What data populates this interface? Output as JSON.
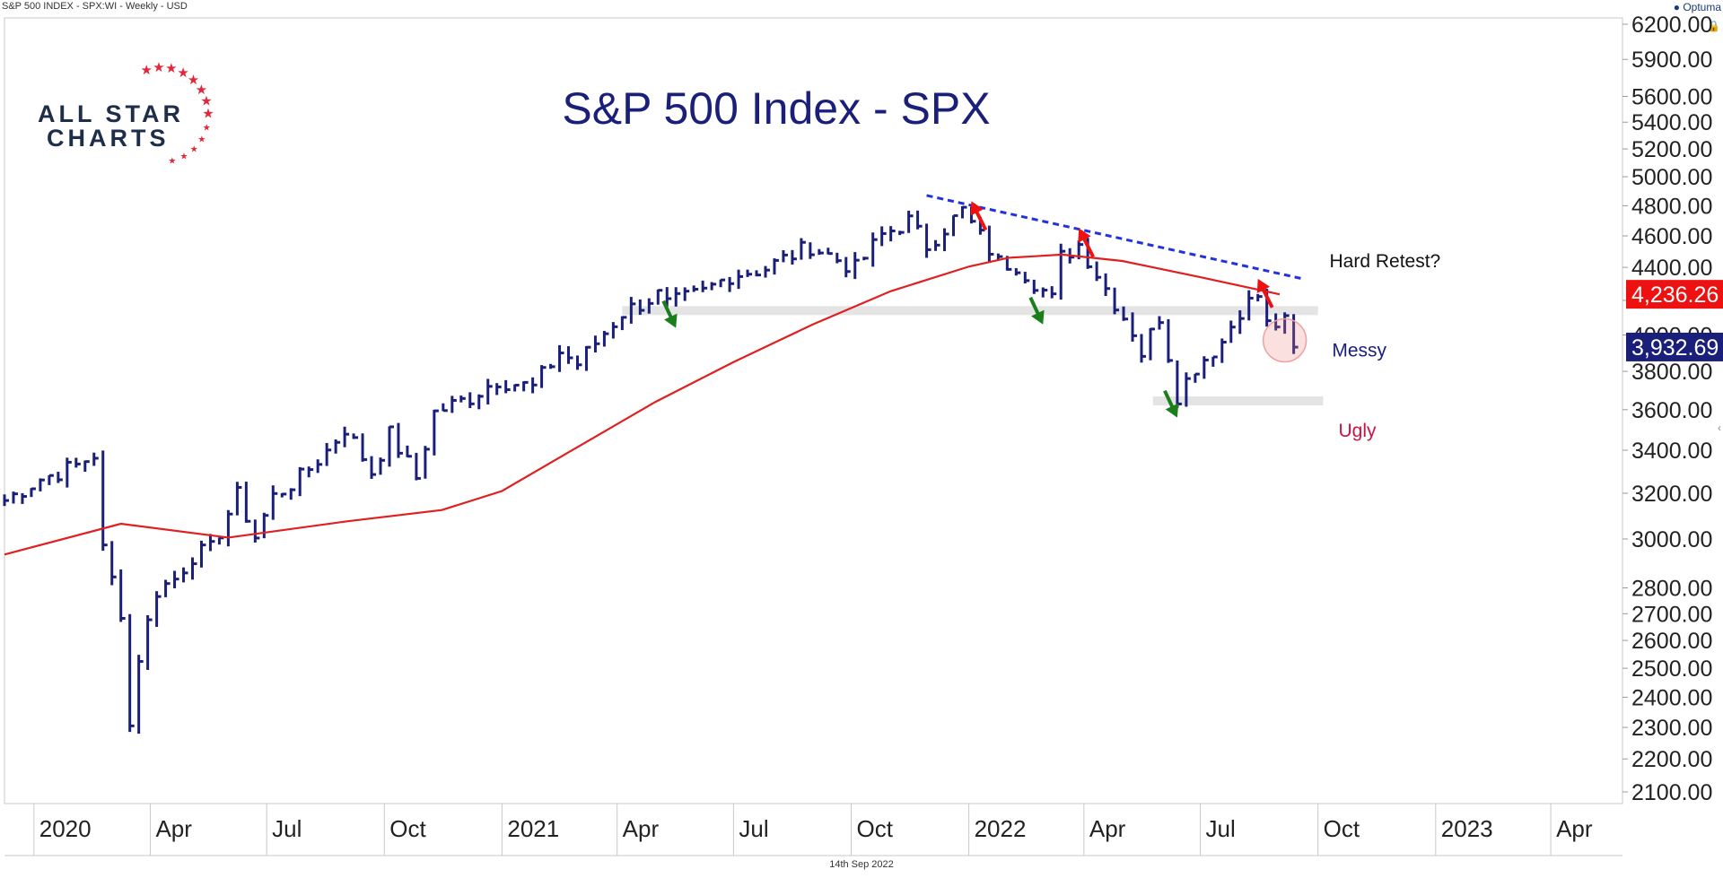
{
  "header": {
    "symbol_line": "S&P 500 INDEX - SPX:WI - Weekly - USD",
    "brand": "Optuma"
  },
  "footer": {
    "date": "14th Sep 2022"
  },
  "logo": {
    "line1": "ALL STAR",
    "line2": "CHARTS"
  },
  "colors": {
    "price": "#1a1f7a",
    "ma": "#e02020",
    "trendline": "#2233dd",
    "red_arrow": "#ee1111",
    "green_arrow": "#1a7f1a",
    "ma_label_bg": "#ee1111",
    "price_label_bg": "#1a1f7a",
    "support_band": "#e4e4e4"
  },
  "icons": {
    "lock": "lock-icon",
    "collapse": "chevron-left-icon"
  },
  "chart_data": {
    "type": "ohlc",
    "title": "S&P 500 Index - SPX",
    "scale": "log",
    "ylim": [
      2100,
      6200
    ],
    "y_ticks": [
      2100,
      2200,
      2300,
      2400,
      2500,
      2600,
      2700,
      2800,
      3000,
      3200,
      3400,
      3600,
      3800,
      4000,
      4200,
      4400,
      4600,
      4800,
      5000,
      5200,
      5400,
      5600,
      5900,
      6200
    ],
    "y_tick_labels": [
      "2100.00",
      "2200.00",
      "2300.00",
      "2400.00",
      "2500.00",
      "2600.00",
      "2700.00",
      "2800.00",
      "3000.00",
      "3200.00",
      "3400.00",
      "3600.00",
      "3800.00",
      "4000.00",
      "4200.00",
      "4400.00",
      "4600.00",
      "4800.00",
      "5000.00",
      "5200.00",
      "5400.00",
      "5600.00",
      "5900.00",
      "6200.00"
    ],
    "x_range": [
      "2019-12-09",
      "2023-06-01"
    ],
    "x_ticks": [
      {
        "date": "2020-01-01",
        "label": "2020"
      },
      {
        "date": "2020-04-01",
        "label": "Apr"
      },
      {
        "date": "2020-07-01",
        "label": "Jul"
      },
      {
        "date": "2020-10-01",
        "label": "Oct"
      },
      {
        "date": "2021-01-01",
        "label": "2021"
      },
      {
        "date": "2021-04-01",
        "label": "Apr"
      },
      {
        "date": "2021-07-01",
        "label": "Jul"
      },
      {
        "date": "2021-10-01",
        "label": "Oct"
      },
      {
        "date": "2022-01-01",
        "label": "2022"
      },
      {
        "date": "2022-04-01",
        "label": "Apr"
      },
      {
        "date": "2022-07-01",
        "label": "Jul"
      },
      {
        "date": "2022-10-01",
        "label": "Oct"
      },
      {
        "date": "2023-01-01",
        "label": "2023"
      },
      {
        "date": "2023-04-01",
        "label": "Apr"
      }
    ],
    "series": [
      {
        "name": "SPX",
        "kind": "price",
        "points": [
          [
            "2019-12-09",
            3168
          ],
          [
            "2020-01-06",
            3265
          ],
          [
            "2020-02-03",
            3327
          ],
          [
            "2020-02-17",
            3380
          ],
          [
            "2020-02-24",
            2954
          ],
          [
            "2020-03-09",
            2711
          ],
          [
            "2020-03-16",
            2305
          ],
          [
            "2020-03-23",
            2541
          ],
          [
            "2020-04-06",
            2790
          ],
          [
            "2020-04-20",
            2836
          ],
          [
            "2020-05-04",
            2930
          ],
          [
            "2020-05-18",
            2955
          ],
          [
            "2020-06-08",
            3190
          ],
          [
            "2020-06-22",
            3010
          ],
          [
            "2020-07-06",
            3185
          ],
          [
            "2020-07-27",
            3271
          ],
          [
            "2020-08-17",
            3397
          ],
          [
            "2020-08-31",
            3508
          ],
          [
            "2020-09-21",
            3298
          ],
          [
            "2020-10-05",
            3477
          ],
          [
            "2020-10-26",
            3270
          ],
          [
            "2020-11-09",
            3585
          ],
          [
            "2020-12-07",
            3663
          ],
          [
            "2020-12-28",
            3756
          ],
          [
            "2021-01-25",
            3714
          ],
          [
            "2021-02-15",
            3906
          ],
          [
            "2021-03-01",
            3841
          ],
          [
            "2021-04-05",
            4128
          ],
          [
            "2021-05-03",
            4232
          ],
          [
            "2021-05-10",
            4173
          ],
          [
            "2021-06-07",
            4247
          ],
          [
            "2021-06-28",
            4352
          ],
          [
            "2021-07-26",
            4395
          ],
          [
            "2021-08-30",
            4535
          ],
          [
            "2021-10-04",
            4391
          ],
          [
            "2021-10-25",
            4605
          ],
          [
            "2021-11-15",
            4697
          ],
          [
            "2021-11-29",
            4538
          ],
          [
            "2021-12-27",
            4766
          ],
          [
            "2022-01-03",
            4677
          ],
          [
            "2022-01-24",
            4431
          ],
          [
            "2022-02-07",
            4418
          ],
          [
            "2022-03-07",
            4204
          ],
          [
            "2022-03-14",
            4463
          ],
          [
            "2022-03-28",
            4545
          ],
          [
            "2022-04-18",
            4272
          ],
          [
            "2022-05-09",
            4023
          ],
          [
            "2022-05-16",
            3901
          ],
          [
            "2022-05-30",
            4108
          ],
          [
            "2022-06-13",
            3675
          ],
          [
            "2022-06-27",
            3825
          ],
          [
            "2022-07-18",
            3962
          ],
          [
            "2022-08-01",
            4145
          ],
          [
            "2022-08-15",
            4228
          ],
          [
            "2022-08-22",
            4057
          ],
          [
            "2022-09-05",
            4067
          ],
          [
            "2022-09-12",
            3932
          ]
        ]
      },
      {
        "name": "Moving average",
        "kind": "ma",
        "points": [
          [
            "2019-12-09",
            2935
          ],
          [
            "2020-03-09",
            3065
          ],
          [
            "2020-06-01",
            3006
          ],
          [
            "2020-09-01",
            3075
          ],
          [
            "2020-11-15",
            3125
          ],
          [
            "2021-01-01",
            3210
          ],
          [
            "2021-03-01",
            3415
          ],
          [
            "2021-05-01",
            3640
          ],
          [
            "2021-07-01",
            3850
          ],
          [
            "2021-09-01",
            4060
          ],
          [
            "2021-11-01",
            4255
          ],
          [
            "2022-01-01",
            4405
          ],
          [
            "2022-02-01",
            4460
          ],
          [
            "2022-03-15",
            4480
          ],
          [
            "2022-05-01",
            4440
          ],
          [
            "2022-07-01",
            4340
          ],
          [
            "2022-09-01",
            4236
          ]
        ]
      }
    ],
    "current": {
      "price": "3,932.69",
      "ma": "4,236.26"
    },
    "annotations": [
      {
        "text": "Hard Retest?",
        "date": "2022-10-10",
        "value": 4400,
        "color": "#111111"
      },
      {
        "text": "Messy",
        "date": "2022-10-12",
        "value": 3880,
        "color": "#1a1f7a"
      },
      {
        "text": "Ugly",
        "date": "2022-10-17",
        "value": 3465,
        "color": "#d01040"
      }
    ],
    "trendline": {
      "from": [
        "2021-11-29",
        4870
      ],
      "to": [
        "2022-09-19",
        4330
      ]
    },
    "support_bands": [
      {
        "from": "2021-04-05",
        "to": "2022-10-01",
        "value": 4140
      },
      {
        "from": "2022-05-25",
        "to": "2022-10-05",
        "value": 3645
      }
    ],
    "highlight_circle": {
      "date": "2022-09-05",
      "value": 3970
    },
    "red_arrows": [
      {
        "date": "2022-01-03",
        "value": 4830
      },
      {
        "date": "2022-03-28",
        "value": 4650
      },
      {
        "date": "2022-08-15",
        "value": 4330
      }
    ],
    "green_arrows": [
      {
        "date": "2021-05-17",
        "value": 4040
      },
      {
        "date": "2022-02-28",
        "value": 4060
      },
      {
        "date": "2022-06-13",
        "value": 3560
      }
    ]
  }
}
